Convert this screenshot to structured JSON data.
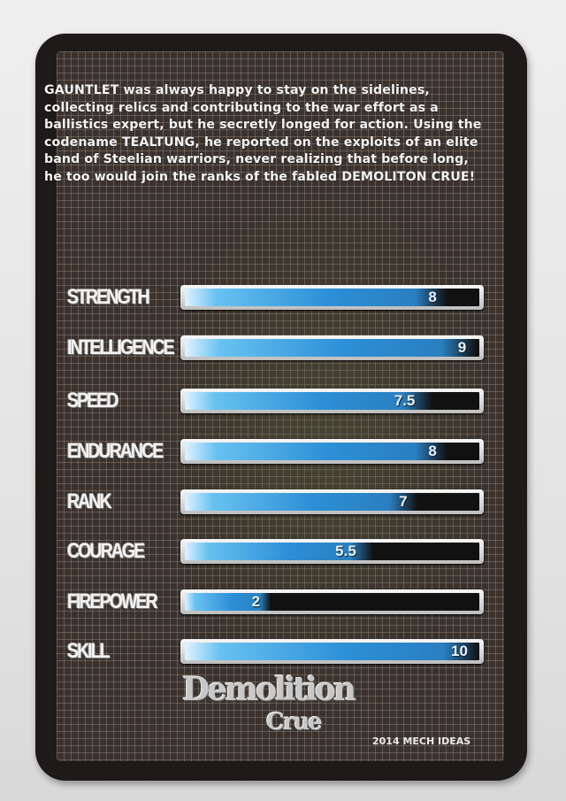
{
  "card": {
    "bio": "GAUNTLET was always happy to stay on the sidelines, collecting relics and contributing to the war effort as a ballistics expert, but he secretly longed for action. Using the codename TEALTUNG, he reported on the exploits of an elite band of Steelian warriors, never realizing that before long, he too would join the ranks of the fabled DEMOLITON CRUE!",
    "stat_max": 10,
    "stats": [
      {
        "label": "STRENGTH",
        "value": 8,
        "display": "8"
      },
      {
        "label": "INTELLIGENCE",
        "value": 9,
        "display": "9"
      },
      {
        "label": "SPEED",
        "value": 7.5,
        "display": "7.5"
      },
      {
        "label": "ENDURANCE",
        "value": 8,
        "display": "8"
      },
      {
        "label": "RANK",
        "value": 7,
        "display": "7"
      },
      {
        "label": "COURAGE",
        "value": 5.5,
        "display": "5.5"
      },
      {
        "label": "FIREPOWER",
        "value": 2,
        "display": "2"
      },
      {
        "label": "SKILL",
        "value": 10,
        "display": "10"
      }
    ],
    "logo": {
      "line1": "Demolition",
      "line2": "Crue"
    },
    "copyright": "2014 MECH IDEAS",
    "colors": {
      "bar_fill": "#2c8fd6",
      "bar_empty": "#111111",
      "card_border": "#1d1a19"
    }
  }
}
